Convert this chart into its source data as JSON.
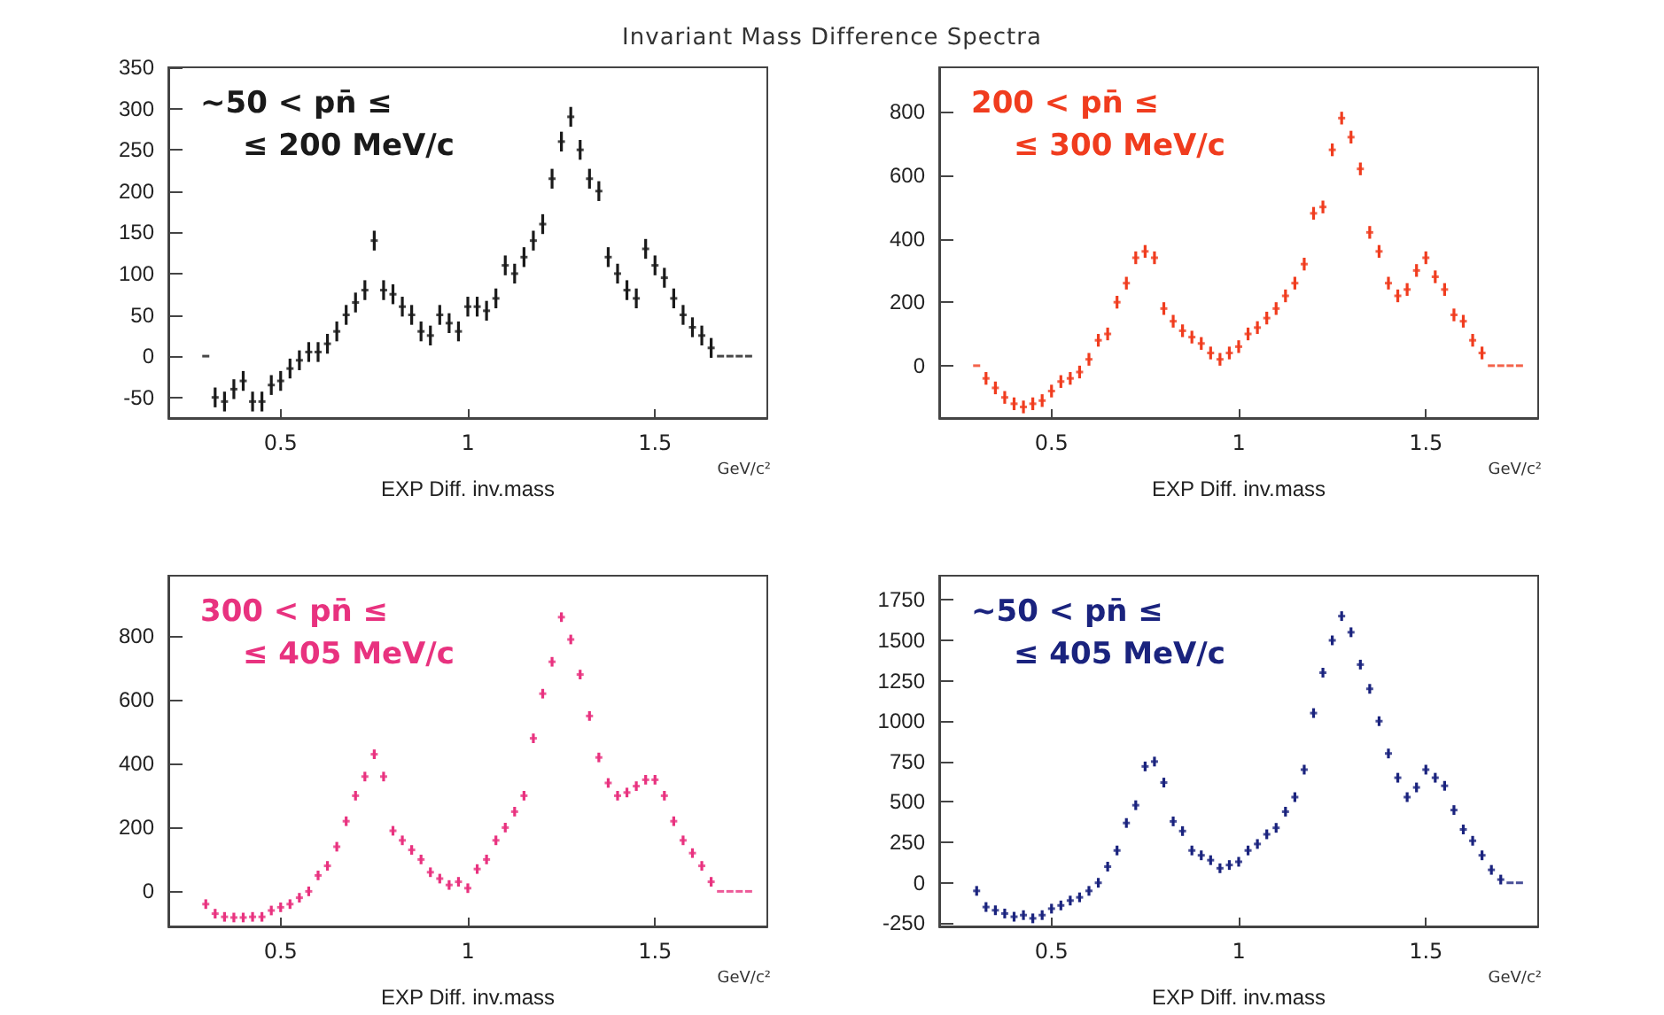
{
  "chart_data": [
    {
      "type": "scatter",
      "title": "Invariant Mass Difference Spectra",
      "xlabel": "EXP Diff. inv.mass",
      "annotations": [
        "∼50 < pn̄ ≤",
        "≤ 200 MeV/c",
        "GeV/c²"
      ],
      "xlim": [
        0.2,
        1.8
      ],
      "xticks": [
        0.5,
        1,
        1.5
      ],
      "ylim": [
        -75,
        350
      ],
      "yticks": [
        -50,
        0,
        50,
        100,
        150,
        200,
        250,
        300,
        350
      ],
      "x": [
        0.3,
        0.325,
        0.35,
        0.375,
        0.4,
        0.425,
        0.45,
        0.475,
        0.5,
        0.525,
        0.55,
        0.575,
        0.6,
        0.625,
        0.65,
        0.675,
        0.7,
        0.725,
        0.75,
        0.775,
        0.8,
        0.825,
        0.85,
        0.875,
        0.9,
        0.925,
        0.95,
        0.975,
        1.0,
        1.025,
        1.05,
        1.075,
        1.1,
        1.125,
        1.15,
        1.175,
        1.2,
        1.225,
        1.25,
        1.275,
        1.3,
        1.325,
        1.35,
        1.375,
        1.4,
        1.425,
        1.45,
        1.475,
        1.5,
        1.525,
        1.55,
        1.575,
        1.6,
        1.625,
        1.65,
        1.675,
        1.7,
        1.725,
        1.75
      ],
      "series": [
        {
          "color": "#1a1a1a",
          "values": [
            0,
            -50,
            -55,
            -40,
            -30,
            -55,
            -55,
            -35,
            -30,
            -15,
            -5,
            5,
            5,
            15,
            30,
            50,
            65,
            80,
            140,
            80,
            75,
            60,
            50,
            30,
            25,
            50,
            40,
            30,
            60,
            60,
            55,
            70,
            110,
            100,
            120,
            140,
            160,
            215,
            260,
            290,
            250,
            215,
            200,
            120,
            100,
            80,
            70,
            130,
            110,
            95,
            70,
            50,
            35,
            25,
            10,
            0,
            0,
            0,
            0
          ],
          "errors": [
            null,
            12,
            12,
            12,
            12,
            12,
            12,
            12,
            12,
            12,
            12,
            12,
            12,
            12,
            12,
            12,
            12,
            12,
            12,
            12,
            12,
            12,
            12,
            12,
            12,
            12,
            12,
            12,
            12,
            12,
            12,
            12,
            12,
            12,
            12,
            12,
            12,
            12,
            12,
            12,
            12,
            12,
            12,
            12,
            12,
            12,
            12,
            12,
            12,
            12,
            12,
            12,
            12,
            12,
            12,
            null,
            null,
            null,
            null
          ]
        }
      ]
    },
    {
      "type": "scatter",
      "xlabel": "EXP Diff. inv.mass",
      "annotations": [
        "200 < pn̄ ≤",
        "≤ 300 MeV/c",
        "GeV/c²"
      ],
      "xlim": [
        0.2,
        1.8
      ],
      "xticks": [
        0.5,
        1,
        1.5
      ],
      "ylim": [
        -165,
        940
      ],
      "yticks": [
        0,
        200,
        400,
        600,
        800
      ],
      "x": [
        0.3,
        0.325,
        0.35,
        0.375,
        0.4,
        0.425,
        0.45,
        0.475,
        0.5,
        0.525,
        0.55,
        0.575,
        0.6,
        0.625,
        0.65,
        0.675,
        0.7,
        0.725,
        0.75,
        0.775,
        0.8,
        0.825,
        0.85,
        0.875,
        0.9,
        0.925,
        0.95,
        0.975,
        1.0,
        1.025,
        1.05,
        1.075,
        1.1,
        1.125,
        1.15,
        1.175,
        1.2,
        1.225,
        1.25,
        1.275,
        1.3,
        1.325,
        1.35,
        1.375,
        1.4,
        1.425,
        1.45,
        1.475,
        1.5,
        1.525,
        1.55,
        1.575,
        1.6,
        1.625,
        1.65,
        1.675,
        1.7,
        1.725,
        1.75
      ],
      "series": [
        {
          "color": "#f03c1e",
          "values": [
            0,
            -40,
            -70,
            -100,
            -120,
            -130,
            -120,
            -110,
            -80,
            -50,
            -40,
            -20,
            20,
            80,
            100,
            200,
            260,
            340,
            360,
            340,
            180,
            140,
            110,
            90,
            70,
            40,
            20,
            40,
            60,
            100,
            120,
            150,
            180,
            220,
            260,
            320,
            480,
            500,
            680,
            780,
            720,
            620,
            420,
            360,
            260,
            220,
            240,
            300,
            340,
            280,
            240,
            160,
            140,
            80,
            40,
            0,
            0,
            0,
            0
          ],
          "errors": [
            null,
            20,
            20,
            20,
            20,
            20,
            20,
            20,
            20,
            20,
            20,
            20,
            20,
            20,
            20,
            20,
            20,
            20,
            20,
            20,
            20,
            20,
            20,
            20,
            20,
            20,
            20,
            20,
            20,
            20,
            20,
            20,
            20,
            20,
            20,
            20,
            20,
            20,
            20,
            20,
            20,
            20,
            20,
            20,
            20,
            20,
            20,
            20,
            20,
            20,
            20,
            20,
            20,
            20,
            20,
            null,
            null,
            null,
            null
          ]
        }
      ]
    },
    {
      "type": "scatter",
      "xlabel": "EXP Diff. inv.mass",
      "annotations": [
        "300 < pn̄ ≤",
        "≤ 405 MeV/c",
        "GeV/c²"
      ],
      "xlim": [
        0.2,
        1.8
      ],
      "xticks": [
        0.5,
        1,
        1.5
      ],
      "ylim": [
        -110,
        990
      ],
      "yticks": [
        0,
        200,
        400,
        600,
        800
      ],
      "x": [
        0.3,
        0.325,
        0.35,
        0.375,
        0.4,
        0.425,
        0.45,
        0.475,
        0.5,
        0.525,
        0.55,
        0.575,
        0.6,
        0.625,
        0.65,
        0.675,
        0.7,
        0.725,
        0.75,
        0.775,
        0.8,
        0.825,
        0.85,
        0.875,
        0.9,
        0.925,
        0.95,
        0.975,
        1.0,
        1.025,
        1.05,
        1.075,
        1.1,
        1.125,
        1.15,
        1.175,
        1.2,
        1.225,
        1.25,
        1.275,
        1.3,
        1.325,
        1.35,
        1.375,
        1.4,
        1.425,
        1.45,
        1.475,
        1.5,
        1.525,
        1.55,
        1.575,
        1.6,
        1.625,
        1.65,
        1.675,
        1.7,
        1.725,
        1.75
      ],
      "series": [
        {
          "color": "#e8327f",
          "values": [
            -40,
            -70,
            -80,
            -82,
            -82,
            -80,
            -80,
            -60,
            -50,
            -40,
            -20,
            0,
            50,
            80,
            140,
            220,
            300,
            360,
            430,
            360,
            190,
            160,
            130,
            100,
            60,
            40,
            20,
            30,
            10,
            70,
            100,
            160,
            200,
            250,
            300,
            480,
            620,
            720,
            860,
            790,
            680,
            550,
            420,
            340,
            300,
            310,
            330,
            350,
            350,
            300,
            220,
            160,
            120,
            80,
            30,
            0,
            0,
            0,
            0
          ],
          "errors": [
            15,
            15,
            15,
            15,
            15,
            15,
            15,
            15,
            15,
            15,
            15,
            15,
            15,
            15,
            15,
            15,
            15,
            15,
            15,
            15,
            15,
            15,
            15,
            15,
            15,
            15,
            15,
            15,
            15,
            15,
            15,
            15,
            15,
            15,
            15,
            15,
            15,
            15,
            15,
            15,
            15,
            15,
            15,
            15,
            15,
            15,
            15,
            15,
            15,
            15,
            15,
            15,
            15,
            15,
            15,
            null,
            null,
            null,
            null
          ]
        }
      ]
    },
    {
      "type": "scatter",
      "xlabel": "EXP Diff. inv.mass",
      "annotations": [
        "∼50 < pn̄ ≤",
        "≤ 405 MeV/c",
        "GeV/c²"
      ],
      "xlim": [
        0.2,
        1.8
      ],
      "xticks": [
        0.5,
        1,
        1.5
      ],
      "ylim": [
        -270,
        1900
      ],
      "yticks": [
        -250,
        0,
        250,
        500,
        750,
        1000,
        1250,
        1500,
        1750
      ],
      "x": [
        0.3,
        0.325,
        0.35,
        0.375,
        0.4,
        0.425,
        0.45,
        0.475,
        0.5,
        0.525,
        0.55,
        0.575,
        0.6,
        0.625,
        0.65,
        0.675,
        0.7,
        0.725,
        0.75,
        0.775,
        0.8,
        0.825,
        0.85,
        0.875,
        0.9,
        0.925,
        0.95,
        0.975,
        1.0,
        1.025,
        1.05,
        1.075,
        1.1,
        1.125,
        1.15,
        1.175,
        1.2,
        1.225,
        1.25,
        1.275,
        1.3,
        1.325,
        1.35,
        1.375,
        1.4,
        1.425,
        1.45,
        1.475,
        1.5,
        1.525,
        1.55,
        1.575,
        1.6,
        1.625,
        1.65,
        1.675,
        1.7,
        1.725,
        1.75
      ],
      "series": [
        {
          "color": "#1a237e",
          "values": [
            -50,
            -150,
            -170,
            -190,
            -210,
            -200,
            -220,
            -200,
            -160,
            -140,
            -110,
            -90,
            -50,
            0,
            100,
            200,
            370,
            480,
            720,
            750,
            620,
            380,
            320,
            200,
            170,
            140,
            90,
            110,
            130,
            200,
            240,
            300,
            340,
            440,
            530,
            700,
            1050,
            1300,
            1500,
            1650,
            1550,
            1350,
            1200,
            1000,
            800,
            650,
            530,
            590,
            700,
            650,
            600,
            450,
            330,
            260,
            170,
            80,
            20,
            0,
            0
          ],
          "errors": [
            30,
            30,
            30,
            30,
            30,
            30,
            30,
            30,
            30,
            30,
            30,
            30,
            30,
            30,
            30,
            30,
            30,
            30,
            30,
            30,
            30,
            30,
            30,
            30,
            30,
            30,
            30,
            30,
            30,
            30,
            30,
            30,
            30,
            30,
            30,
            30,
            30,
            30,
            30,
            30,
            30,
            30,
            30,
            30,
            30,
            30,
            30,
            30,
            30,
            30,
            30,
            30,
            30,
            30,
            30,
            30,
            30,
            null,
            null
          ]
        }
      ]
    }
  ]
}
